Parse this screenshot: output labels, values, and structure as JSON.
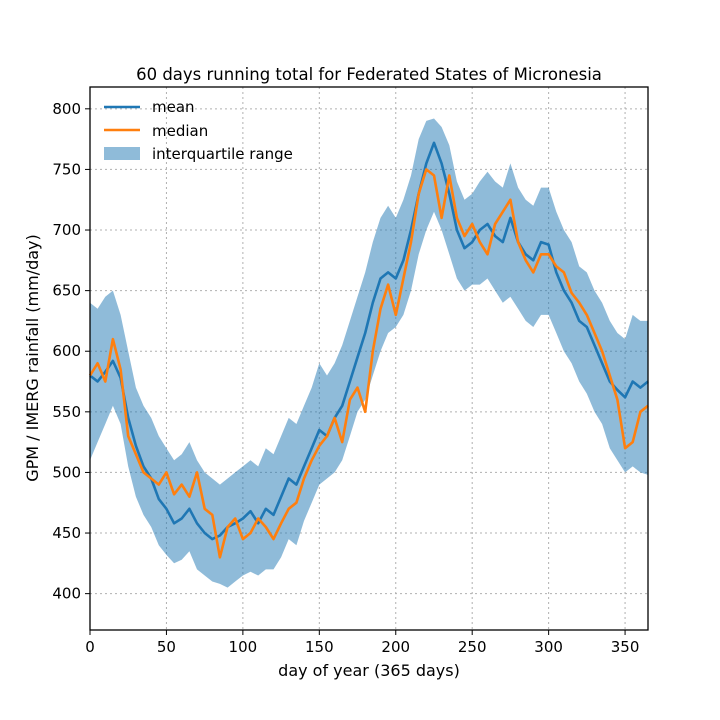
{
  "chart_data": {
    "type": "line",
    "title": "60 days running total for Federated States of Micronesia",
    "xlabel": "day of year (365 days)",
    "ylabel": "GPM / IMERG rainfall (mm/day)",
    "xlim": [
      0,
      365
    ],
    "ylim": [
      370,
      818
    ],
    "xticks": [
      0,
      50,
      100,
      150,
      200,
      250,
      300,
      350
    ],
    "yticks": [
      400,
      450,
      500,
      550,
      600,
      650,
      700,
      750,
      800
    ],
    "grid": true,
    "legend_position": "top-left",
    "colors": {
      "mean": "#1f77b4",
      "median": "#ff7f0e",
      "band": "#1f77b4"
    },
    "legend": [
      "mean",
      "median",
      "interquartile range"
    ],
    "series": [
      {
        "name": "mean",
        "x": [
          0,
          5,
          10,
          15,
          20,
          25,
          30,
          35,
          40,
          45,
          50,
          55,
          60,
          65,
          70,
          75,
          80,
          85,
          90,
          95,
          100,
          105,
          110,
          115,
          120,
          125,
          130,
          135,
          140,
          145,
          150,
          155,
          160,
          165,
          170,
          175,
          180,
          185,
          190,
          195,
          200,
          205,
          210,
          215,
          220,
          225,
          230,
          235,
          240,
          245,
          250,
          255,
          260,
          265,
          270,
          275,
          280,
          285,
          290,
          295,
          300,
          305,
          310,
          315,
          320,
          325,
          330,
          335,
          340,
          345,
          350,
          355,
          360,
          365
        ],
        "values": [
          580,
          575,
          583,
          592,
          578,
          545,
          522,
          505,
          495,
          478,
          470,
          458,
          462,
          470,
          458,
          450,
          445,
          448,
          455,
          458,
          462,
          468,
          458,
          470,
          465,
          480,
          495,
          490,
          505,
          520,
          535,
          530,
          545,
          555,
          575,
          595,
          615,
          640,
          660,
          665,
          660,
          675,
          700,
          730,
          755,
          772,
          755,
          730,
          700,
          685,
          690,
          700,
          705,
          695,
          690,
          710,
          690,
          680,
          675,
          690,
          688,
          665,
          650,
          640,
          625,
          620,
          605,
          590,
          575,
          568,
          562,
          575,
          570,
          575
        ]
      },
      {
        "name": "median",
        "x": [
          0,
          5,
          10,
          15,
          20,
          25,
          30,
          35,
          40,
          45,
          50,
          55,
          60,
          65,
          70,
          75,
          80,
          85,
          90,
          95,
          100,
          105,
          110,
          115,
          120,
          125,
          130,
          135,
          140,
          145,
          150,
          155,
          160,
          165,
          170,
          175,
          180,
          185,
          190,
          195,
          200,
          205,
          210,
          215,
          220,
          225,
          230,
          235,
          240,
          245,
          250,
          255,
          260,
          265,
          270,
          275,
          280,
          285,
          290,
          295,
          300,
          305,
          310,
          315,
          320,
          325,
          330,
          335,
          340,
          345,
          350,
          355,
          360,
          365
        ],
        "values": [
          580,
          590,
          575,
          610,
          585,
          530,
          515,
          500,
          495,
          490,
          500,
          482,
          490,
          480,
          500,
          470,
          465,
          430,
          455,
          462,
          445,
          450,
          462,
          455,
          445,
          458,
          470,
          475,
          495,
          510,
          522,
          530,
          545,
          525,
          560,
          570,
          550,
          600,
          635,
          655,
          630,
          660,
          690,
          730,
          750,
          745,
          710,
          745,
          710,
          695,
          705,
          690,
          680,
          705,
          715,
          725,
          690,
          675,
          665,
          680,
          680,
          670,
          665,
          648,
          640,
          630,
          615,
          600,
          580,
          560,
          520,
          525,
          550,
          555
        ]
      }
    ],
    "band": {
      "name": "interquartile range",
      "x": [
        0,
        5,
        10,
        15,
        20,
        25,
        30,
        35,
        40,
        45,
        50,
        55,
        60,
        65,
        70,
        75,
        80,
        85,
        90,
        95,
        100,
        105,
        110,
        115,
        120,
        125,
        130,
        135,
        140,
        145,
        150,
        155,
        160,
        165,
        170,
        175,
        180,
        185,
        190,
        195,
        200,
        205,
        210,
        215,
        220,
        225,
        230,
        235,
        240,
        245,
        250,
        255,
        260,
        265,
        270,
        275,
        280,
        285,
        290,
        295,
        300,
        305,
        310,
        315,
        320,
        325,
        330,
        335,
        340,
        345,
        350,
        355,
        360,
        365
      ],
      "lower": [
        510,
        525,
        540,
        555,
        540,
        505,
        480,
        465,
        455,
        440,
        432,
        425,
        428,
        435,
        420,
        415,
        410,
        408,
        405,
        410,
        415,
        418,
        415,
        420,
        420,
        430,
        445,
        440,
        460,
        475,
        490,
        495,
        500,
        510,
        530,
        550,
        560,
        580,
        600,
        615,
        620,
        630,
        650,
        680,
        700,
        715,
        700,
        680,
        660,
        650,
        655,
        655,
        660,
        650,
        640,
        645,
        635,
        625,
        620,
        630,
        630,
        615,
        600,
        590,
        575,
        565,
        550,
        540,
        520,
        510,
        500,
        505,
        500,
        498
      ],
      "upper": [
        640,
        635,
        645,
        650,
        630,
        600,
        570,
        555,
        545,
        530,
        520,
        510,
        515,
        525,
        510,
        500,
        495,
        490,
        495,
        500,
        505,
        510,
        505,
        520,
        515,
        530,
        545,
        540,
        555,
        570,
        590,
        580,
        590,
        605,
        625,
        645,
        665,
        690,
        710,
        720,
        710,
        725,
        745,
        775,
        790,
        792,
        785,
        770,
        740,
        725,
        730,
        740,
        748,
        740,
        735,
        755,
        735,
        725,
        720,
        735,
        735,
        715,
        700,
        690,
        670,
        665,
        650,
        640,
        625,
        615,
        610,
        630,
        625,
        625
      ]
    }
  }
}
